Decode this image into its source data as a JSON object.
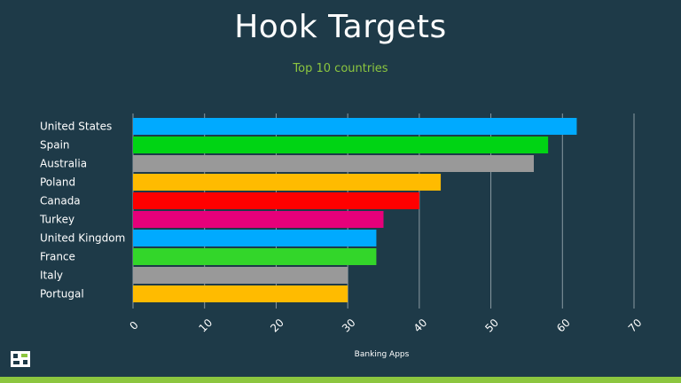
{
  "colors": {
    "background": "#1e3a48",
    "accent": "#8cc63f",
    "grid": "#8a9aa2"
  },
  "chart_data": {
    "type": "bar",
    "orientation": "horizontal",
    "title": "Hook Targets",
    "subtitle": "Top 10 countries",
    "xlabel": "Banking Apps",
    "ylabel": "",
    "xlim": [
      0,
      70
    ],
    "xticks": [
      0,
      10,
      20,
      30,
      40,
      50,
      60,
      70
    ],
    "grid": true,
    "categories": [
      "United States",
      "Spain",
      "Australia",
      "Poland",
      "Canada",
      "Turkey",
      "United Kingdom",
      "France",
      "Italy",
      "Portugal"
    ],
    "values": [
      62,
      58,
      56,
      43,
      40,
      35,
      34,
      34,
      30,
      30
    ],
    "bar_colors": [
      "#00aaff",
      "#00d414",
      "#999999",
      "#ffbb00",
      "#ff0000",
      "#e6007a",
      "#00aaff",
      "#33d62a",
      "#999999",
      "#ffbb00"
    ]
  }
}
